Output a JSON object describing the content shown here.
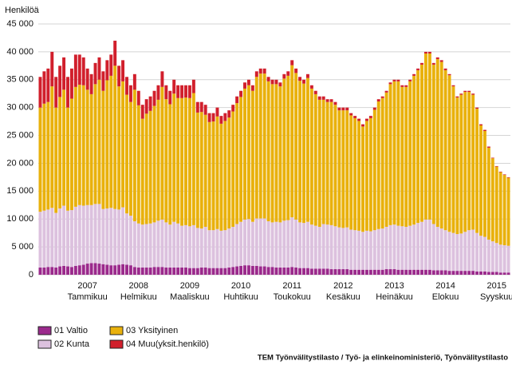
{
  "chart_data": {
    "type": "stacked_bar",
    "y_label": "Henkilöä",
    "source": "TEM Työnvälitystilasto / Työ- ja elinkeinoministeriö, Työnvälitystilasto",
    "categories": [
      null,
      null,
      null,
      null,
      null,
      null,
      null,
      null,
      null,
      null,
      null,
      null,
      "2007 Tammikuu",
      null,
      null,
      null,
      null,
      null,
      null,
      null,
      null,
      null,
      null,
      null,
      null,
      "2008 Helmikuu",
      null,
      null,
      null,
      null,
      null,
      null,
      null,
      null,
      null,
      null,
      null,
      null,
      "2009 Maaliskuu",
      null,
      null,
      null,
      null,
      null,
      null,
      null,
      null,
      null,
      null,
      null,
      null,
      "2010 Huhtikuu",
      null,
      null,
      null,
      null,
      null,
      null,
      null,
      null,
      null,
      null,
      null,
      null,
      "2011 Toukokuu",
      null,
      null,
      null,
      null,
      null,
      null,
      null,
      null,
      null,
      null,
      null,
      null,
      "2012 Kesäkuu",
      null,
      null,
      null,
      null,
      null,
      null,
      null,
      null,
      null,
      null,
      null,
      null,
      "2013 Heinäkuu",
      null,
      null,
      null,
      null,
      null,
      null,
      null,
      null,
      null,
      null,
      null,
      null,
      "2014 Elokuu",
      null,
      null,
      null,
      null,
      null,
      null,
      null,
      null,
      null,
      null,
      null,
      null,
      "2015 Syyskuu",
      null,
      null,
      null
    ],
    "series": [
      {
        "name": "01 Valtio",
        "color": "#9b2a8c",
        "values": [
          1300,
          1300,
          1400,
          1400,
          1300,
          1500,
          1600,
          1500,
          1400,
          1600,
          1700,
          1800,
          2000,
          2100,
          2100,
          2000,
          1900,
          1800,
          1700,
          1700,
          1800,
          1900,
          1800,
          1700,
          1400,
          1300,
          1300,
          1300,
          1300,
          1400,
          1400,
          1400,
          1300,
          1300,
          1300,
          1300,
          1300,
          1300,
          1200,
          1200,
          1200,
          1300,
          1300,
          1200,
          1200,
          1200,
          1200,
          1200,
          1300,
          1400,
          1500,
          1600,
          1700,
          1700,
          1600,
          1600,
          1500,
          1500,
          1400,
          1400,
          1300,
          1300,
          1300,
          1300,
          1400,
          1300,
          1200,
          1200,
          1200,
          1100,
          1100,
          1100,
          1100,
          1100,
          1000,
          1000,
          1000,
          1000,
          1000,
          900,
          900,
          900,
          900,
          900,
          900,
          900,
          900,
          900,
          1000,
          1000,
          1000,
          900,
          900,
          900,
          900,
          900,
          900,
          900,
          900,
          900,
          800,
          800,
          800,
          800,
          700,
          700,
          700,
          700,
          700,
          700,
          700,
          600,
          600,
          600,
          500,
          500,
          500,
          400,
          400,
          400
        ]
      },
      {
        "name": "02 Kunta",
        "color": "#dcc1de",
        "values": [
          10000,
          10200,
          10300,
          10600,
          9800,
          10400,
          10800,
          10000,
          10200,
          10600,
          10800,
          10600,
          10500,
          10400,
          10600,
          10700,
          9900,
          10100,
          10300,
          10100,
          9900,
          10200,
          9200,
          8900,
          8200,
          7900,
          7700,
          7800,
          7900,
          8000,
          8300,
          8500,
          8100,
          7700,
          8200,
          7900,
          7500,
          7600,
          7500,
          7700,
          7200,
          7000,
          7300,
          6800,
          6800,
          7000,
          6700,
          6800,
          7000,
          7200,
          7600,
          7900,
          8200,
          8300,
          7900,
          8500,
          8600,
          8600,
          8200,
          8000,
          8200,
          8100,
          8400,
          8500,
          8900,
          8600,
          8200,
          8100,
          8300,
          7900,
          7700,
          7500,
          8000,
          7900,
          7900,
          7700,
          7500,
          7400,
          7500,
          7200,
          7100,
          7000,
          6800,
          7000,
          6900,
          7100,
          7300,
          7400,
          7600,
          7900,
          8000,
          7900,
          7800,
          7700,
          7900,
          8100,
          8400,
          8600,
          9000,
          9000,
          8300,
          7800,
          7500,
          7200,
          7000,
          6800,
          6600,
          6700,
          7000,
          7300,
          7400,
          6900,
          6400,
          6200,
          5800,
          5500,
          5200,
          5000,
          4900,
          4800
        ]
      },
      {
        "name": "03 Yksityinen",
        "color": "#e9b10c",
        "values": [
          18700,
          19200,
          19300,
          21800,
          18900,
          20000,
          20800,
          18500,
          20000,
          21500,
          21600,
          21600,
          20700,
          19900,
          21500,
          22300,
          21200,
          23000,
          23700,
          25700,
          22100,
          22600,
          21300,
          20400,
          23600,
          21200,
          19000,
          19800,
          20200,
          20900,
          21700,
          23800,
          22100,
          21600,
          23000,
          22500,
          22900,
          22900,
          23000,
          23700,
          20700,
          20900,
          20100,
          19400,
          19500,
          20200,
          19200,
          19600,
          19900,
          20700,
          21700,
          22400,
          23500,
          24000,
          23500,
          25400,
          26000,
          26000,
          25100,
          24800,
          24700,
          24400,
          25500,
          25900,
          27300,
          26300,
          25400,
          25000,
          25800,
          24400,
          23600,
          22800,
          22300,
          22000,
          22100,
          21800,
          21000,
          21100,
          21000,
          20500,
          20100,
          19700,
          18900,
          19700,
          20300,
          21600,
          22900,
          23400,
          24100,
          25300,
          25700,
          25900,
          25000,
          25100,
          25900,
          26700,
          27400,
          28200,
          29800,
          29800,
          28600,
          30100,
          29900,
          28700,
          28100,
          26300,
          24500,
          24900,
          25100,
          24800,
          24200,
          22300,
          19800,
          19000,
          16500,
          14900,
          13700,
          13000,
          12600,
          12200
        ]
      },
      {
        "name": "04 Muu(yksit.henkilö)",
        "color": "#d11f2c",
        "values": [
          5500,
          5800,
          6000,
          6200,
          5500,
          5600,
          5800,
          5500,
          5400,
          5800,
          5400,
          5000,
          3800,
          3600,
          3800,
          4000,
          3500,
          3600,
          3800,
          4500,
          3700,
          3800,
          3200,
          3000,
          2800,
          2600,
          2500,
          2600,
          2600,
          2700,
          2600,
          2800,
          2500,
          2400,
          2500,
          2300,
          2300,
          2200,
          2300,
          2400,
          1900,
          1800,
          1800,
          1600,
          1500,
          1600,
          1400,
          1400,
          1300,
          1200,
          1200,
          1100,
          1100,
          1000,
          1000,
          1000,
          900,
          900,
          800,
          800,
          800,
          700,
          800,
          800,
          900,
          800,
          700,
          700,
          700,
          600,
          600,
          600,
          600,
          500,
          500,
          500,
          500,
          500,
          500,
          400,
          400,
          400,
          400,
          400,
          400,
          400,
          400,
          300,
          300,
          300,
          300,
          300,
          300,
          300,
          300,
          300,
          300,
          300,
          300,
          300,
          300,
          300,
          300,
          300,
          200,
          200,
          200,
          200,
          200,
          200,
          200,
          200,
          200,
          200,
          200,
          100,
          100,
          100,
          100,
          100
        ]
      }
    ],
    "ylim": [
      0,
      45000
    ],
    "yticks": [
      0,
      {
        "value": 5000,
        "label": "5 000"
      },
      {
        "value": 10000,
        "label": "10 000"
      },
      {
        "value": 15000,
        "label": "15 000"
      },
      {
        "value": 20000,
        "label": "20 000"
      },
      {
        "value": 25000,
        "label": "25 000"
      },
      {
        "value": 30000,
        "label": "30 000"
      },
      {
        "value": 35000,
        "label": "35 000"
      },
      {
        "value": 40000,
        "label": "40 000"
      },
      {
        "value": 45000,
        "label": "45 000"
      }
    ],
    "grid": true
  }
}
